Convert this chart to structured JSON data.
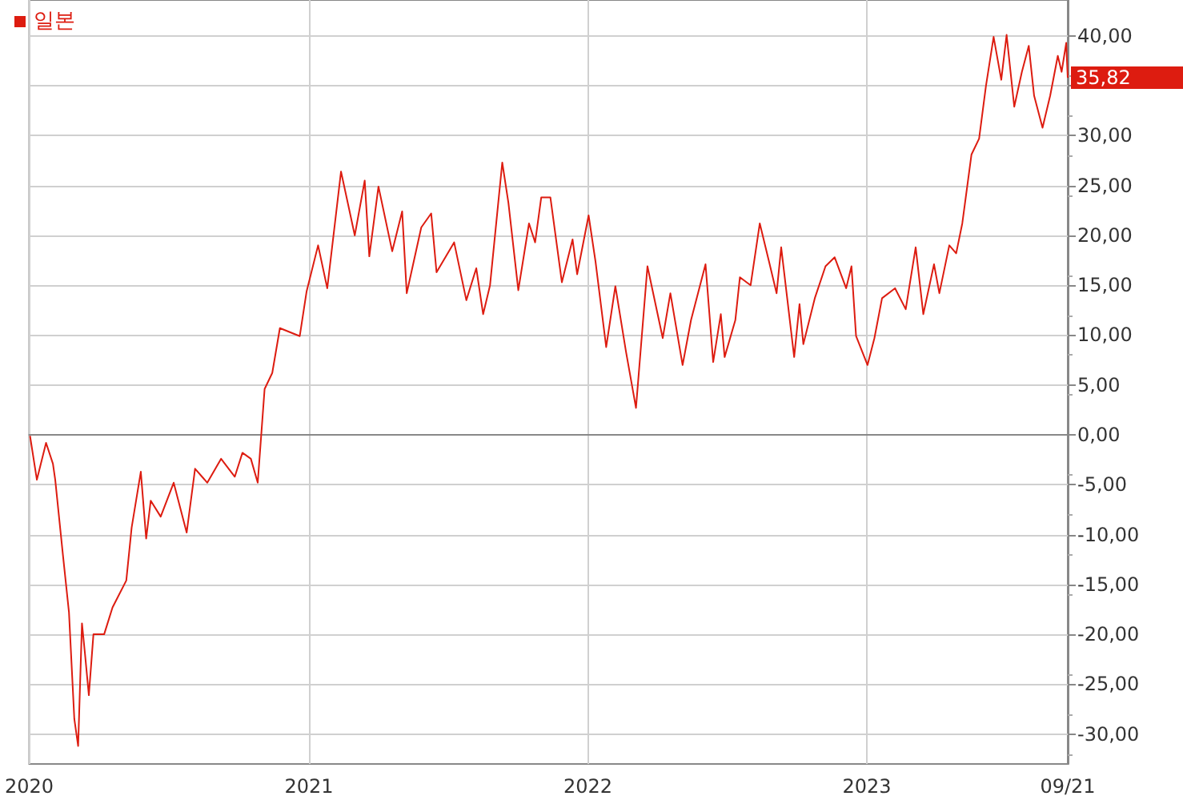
{
  "chart_data": {
    "type": "line",
    "x": [
      "2020-01-02",
      "2020-01-11",
      "2020-01-23",
      "2020-02-01",
      "2020-02-04",
      "2020-02-14",
      "2020-02-22",
      "2020-02-29",
      "2020-03-05",
      "2020-03-10",
      "2020-03-14",
      "2020-03-19",
      "2020-03-25",
      "2020-04-08",
      "2020-04-19",
      "2020-05-07",
      "2020-05-14",
      "2020-05-26",
      "2020-06-02",
      "2020-06-08",
      "2020-06-21",
      "2020-07-08",
      "2020-07-25",
      "2020-08-05",
      "2020-08-21",
      "2020-09-08",
      "2020-09-26",
      "2020-10-06",
      "2020-10-17",
      "2020-10-26",
      "2020-11-04",
      "2020-11-14",
      "2020-11-24",
      "2020-12-20",
      "2020-12-29",
      "2021-01-13",
      "2021-01-25",
      "2021-02-12",
      "2021-03-02",
      "2021-03-15",
      "2021-03-21",
      "2021-04-02",
      "2021-04-20",
      "2021-05-03",
      "2021-05-09",
      "2021-05-28",
      "2021-06-10",
      "2021-06-17",
      "2021-07-10",
      "2021-07-26",
      "2021-08-08",
      "2021-08-17",
      "2021-08-26",
      "2021-09-11",
      "2021-09-19",
      "2021-10-02",
      "2021-10-16",
      "2021-10-24",
      "2021-11-01",
      "2021-11-13",
      "2021-11-28",
      "2021-12-12",
      "2021-12-18",
      "2022-01-02",
      "2022-01-11",
      "2022-01-25",
      "2022-02-06",
      "2022-02-20",
      "2022-03-05",
      "2022-03-20",
      "2022-04-09",
      "2022-04-19",
      "2022-05-05",
      "2022-05-16",
      "2022-06-04",
      "2022-06-14",
      "2022-06-24",
      "2022-06-29",
      "2022-07-13",
      "2022-07-19",
      "2022-08-02",
      "2022-08-14",
      "2022-08-26",
      "2022-09-05",
      "2022-09-11",
      "2022-09-28",
      "2022-10-05",
      "2022-10-10",
      "2022-10-25",
      "2022-11-08",
      "2022-11-20",
      "2022-12-05",
      "2022-12-12",
      "2022-12-18",
      "2023-01-02",
      "2023-01-11",
      "2023-01-21",
      "2023-02-07",
      "2023-02-21",
      "2023-03-06",
      "2023-03-16",
      "2023-03-30",
      "2023-04-06",
      "2023-04-19",
      "2023-04-28",
      "2023-05-06",
      "2023-05-18",
      "2023-05-28",
      "2023-06-06",
      "2023-06-16",
      "2023-06-26",
      "2023-07-03",
      "2023-07-13",
      "2023-07-23",
      "2023-08-01",
      "2023-08-08",
      "2023-08-19",
      "2023-08-29",
      "2023-09-08",
      "2023-09-13",
      "2023-09-19",
      "2023-09-21"
    ],
    "series": [
      {
        "name": "일본",
        "color": "#dd1c10",
        "values": [
          -0.1,
          -4.5,
          -0.8,
          -2.9,
          -4.5,
          -12,
          -17.8,
          -28.5,
          -31.2,
          -18.9,
          -22,
          -26.1,
          -20,
          -20,
          -17.3,
          -14.6,
          -9.3,
          -3.7,
          -10.4,
          -6.6,
          -8.2,
          -4.8,
          -9.8,
          -3.4,
          -4.8,
          -2.4,
          -4.2,
          -1.8,
          -2.4,
          -4.8,
          4.6,
          6.2,
          10.7,
          9.9,
          14.4,
          19,
          14.7,
          26.4,
          20,
          25.5,
          17.9,
          24.9,
          18.4,
          22.4,
          14.2,
          20.8,
          22.2,
          16.3,
          19.3,
          13.5,
          16.7,
          12.1,
          15,
          27.3,
          23.3,
          14.5,
          21.2,
          19.3,
          23.8,
          23.8,
          15.3,
          19.6,
          16.1,
          22,
          17.4,
          8.8,
          14.9,
          8.3,
          2.7,
          16.9,
          9.7,
          14.2,
          7,
          11.5,
          17.1,
          7.3,
          12.1,
          7.8,
          11.5,
          15.8,
          15,
          21.2,
          17.4,
          14.2,
          18.8,
          7.8,
          13.1,
          9.1,
          13.7,
          16.9,
          17.8,
          14.7,
          16.9,
          9.9,
          7,
          9.7,
          13.7,
          14.7,
          12.6,
          18.8,
          12.1,
          17.1,
          14.2,
          19,
          18.2,
          21.2,
          28.1,
          29.7,
          35,
          39.9,
          35.6,
          40.1,
          32.9,
          36.4,
          39,
          34,
          30.8,
          34,
          38,
          36.4,
          39.3,
          35.8
        ]
      }
    ],
    "xlim": [
      "2020-01-01",
      "2023-09-21"
    ],
    "xticks": [
      {
        "value": "2020-01-01",
        "label": "2020"
      },
      {
        "value": "2021-01-01",
        "label": "2021"
      },
      {
        "value": "2022-01-01",
        "label": "2022"
      },
      {
        "value": "2023-01-01",
        "label": "2023"
      },
      {
        "value": "2023-09-21",
        "label": "09/21"
      }
    ],
    "ylim": [
      -33,
      43.6
    ],
    "yticks": [
      {
        "value": -30,
        "label": "-30,00"
      },
      {
        "value": -25,
        "label": "-25,00"
      },
      {
        "value": -20,
        "label": "-20,00"
      },
      {
        "value": -15,
        "label": "-15,00"
      },
      {
        "value": -10,
        "label": "-10,00"
      },
      {
        "value": -5,
        "label": "-5,00"
      },
      {
        "value": 0,
        "label": "0,00"
      },
      {
        "value": 5,
        "label": "5,00"
      },
      {
        "value": 10,
        "label": "10,00"
      },
      {
        "value": 15,
        "label": "15,00"
      },
      {
        "value": 20,
        "label": "20,00"
      },
      {
        "value": 25,
        "label": "25,00"
      },
      {
        "value": 30,
        "label": "30,00"
      },
      {
        "value": 35,
        "label": null
      },
      {
        "value": 40,
        "label": "40,00"
      }
    ],
    "annotations": [
      {
        "text": "35,82",
        "x": "2023-09-21",
        "y": 35.82
      }
    ],
    "grid": true,
    "legend": "top left",
    "marker": "none",
    "line_style": "solid"
  }
}
